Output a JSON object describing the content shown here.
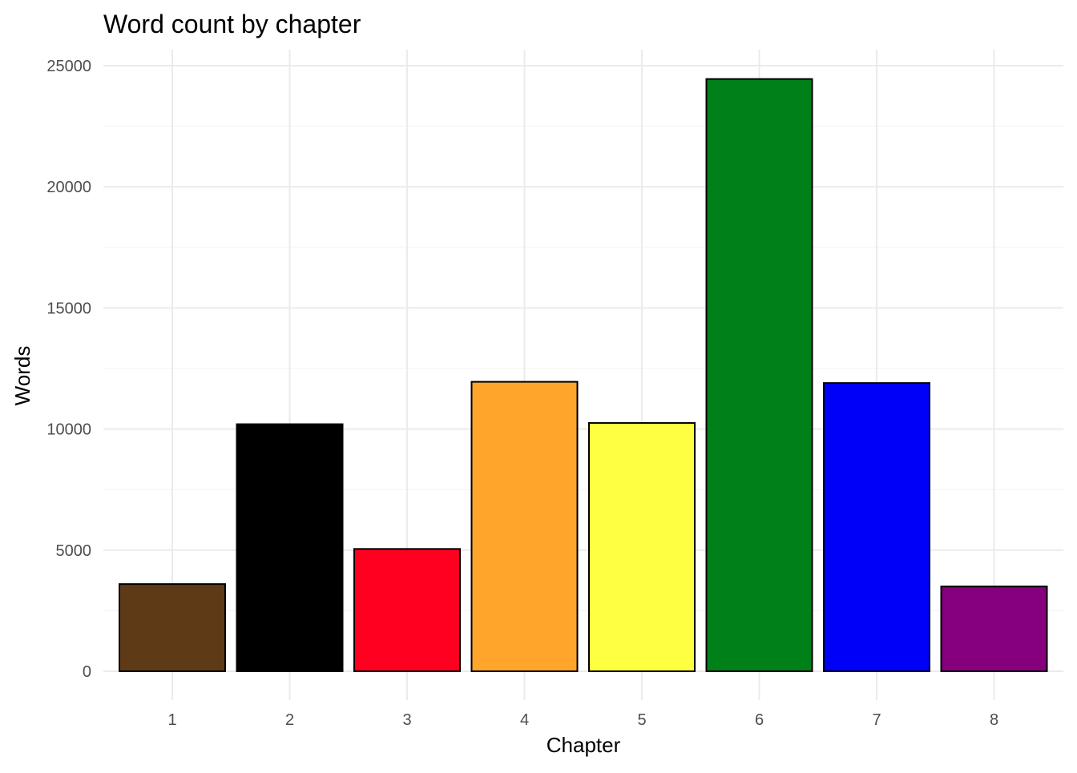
{
  "chart_data": {
    "type": "bar",
    "title": "Word count by chapter",
    "xlabel": "Chapter",
    "ylabel": "Words",
    "categories": [
      "1",
      "2",
      "3",
      "4",
      "5",
      "6",
      "7",
      "8"
    ],
    "values": [
      3600,
      10200,
      5050,
      11950,
      10250,
      24450,
      11900,
      3500
    ],
    "colors": [
      "#5f3a17",
      "#000000",
      "#ff0020",
      "#ffa52c",
      "#ffff41",
      "#008018",
      "#0000f9",
      "#86007d"
    ],
    "bar_outline_color": "#000000",
    "ylim": [
      0,
      25000
    ],
    "yticks": [
      0,
      5000,
      10000,
      15000,
      20000,
      25000
    ],
    "ytick_labels": [
      "0",
      "5000",
      "10000",
      "15000",
      "20000",
      "25000"
    ],
    "grid": true,
    "legend": "none"
  }
}
